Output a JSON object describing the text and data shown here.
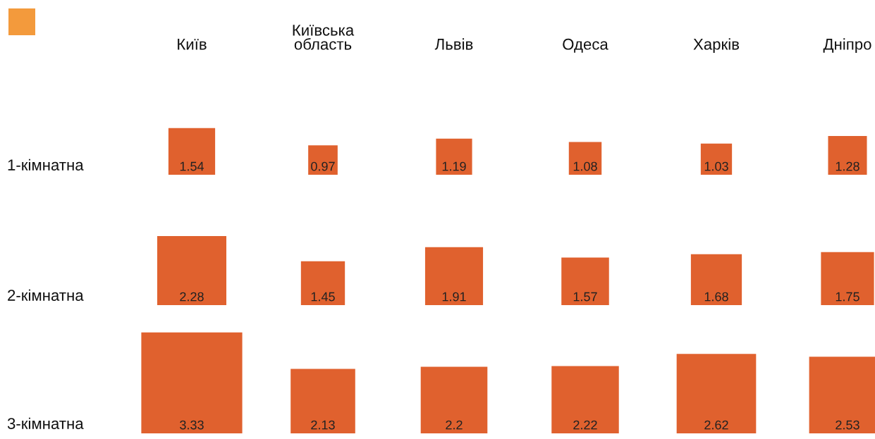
{
  "chart_data": {
    "type": "other",
    "categories": [
      "Київ",
      "Київська\nобласть",
      "Львів",
      "Одеса",
      "Харків",
      "Дніпро"
    ],
    "annotations": [
      "1-кімнатна",
      "2-кімнатна",
      "3-кімнатна"
    ],
    "series": [
      {
        "color": "#e0612e",
        "values": [
          1.54,
          0.97,
          1.19,
          1.08,
          1.03,
          1.28
        ]
      },
      {
        "color": "#e0612e",
        "values": [
          2.28,
          1.45,
          1.91,
          1.57,
          1.68,
          1.75
        ]
      },
      {
        "color": "#e0612e",
        "values": [
          3.33,
          2.13,
          2.2,
          2.22,
          2.62,
          2.53
        ]
      }
    ],
    "data_labels": true
  }
}
